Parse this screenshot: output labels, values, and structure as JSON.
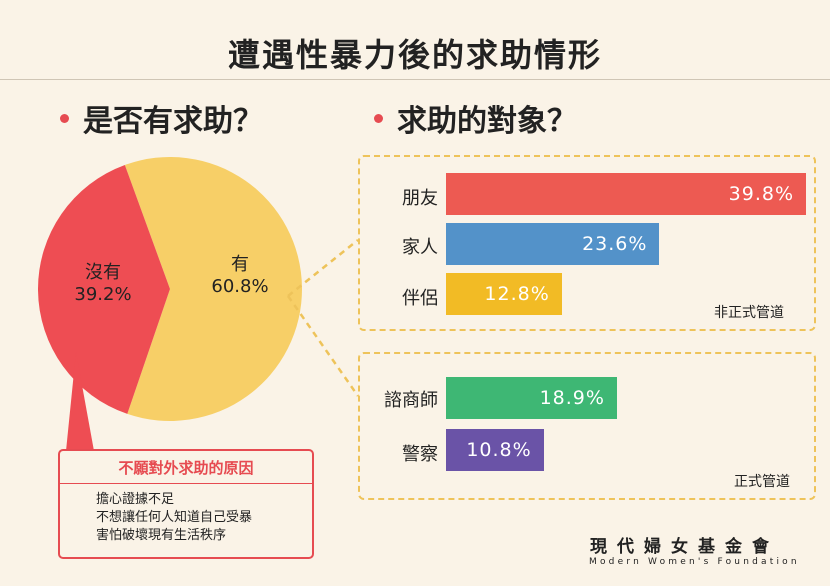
{
  "title": "遭遇性暴力後的求助情形",
  "left_heading": "是否有求助？",
  "right_heading": "求助的對象？",
  "chart_data": [
    {
      "type": "pie",
      "title": "是否有求助？",
      "slices": [
        {
          "label": "有",
          "value": 60.8,
          "value_label": "60.8%",
          "color": "#f7cf67"
        },
        {
          "label": "沒有",
          "value": 39.2,
          "value_label": "39.2%",
          "color": "#ee4d53"
        }
      ]
    },
    {
      "type": "bar",
      "orientation": "horizontal",
      "title": "求助的對象？",
      "xlim": [
        0,
        39.8
      ],
      "groups": [
        {
          "name": "非正式管道",
          "categories": [
            "朋友",
            "家人",
            "伴侶"
          ],
          "values": [
            39.8,
            23.6,
            12.8
          ],
          "value_labels": [
            "39.8%",
            "23.6%",
            "12.8%"
          ],
          "colors": [
            "#ed5a52",
            "#5392c9",
            "#f2bb25"
          ]
        },
        {
          "name": "正式管道",
          "categories": [
            "諮商師",
            "警察"
          ],
          "values": [
            18.9,
            10.8
          ],
          "value_labels": [
            "18.9%",
            "10.8%"
          ],
          "colors": [
            "#3eb774",
            "#6a53a7"
          ]
        }
      ]
    }
  ],
  "reasons": {
    "title": "不願對外求助的原因",
    "items": [
      "擔心證據不足",
      "不想讓任何人知道自己受暴",
      "害怕破壞現有生活秩序"
    ]
  },
  "org": {
    "name": "現代婦女基金會",
    "name_en": "Modern Women's Foundation"
  }
}
